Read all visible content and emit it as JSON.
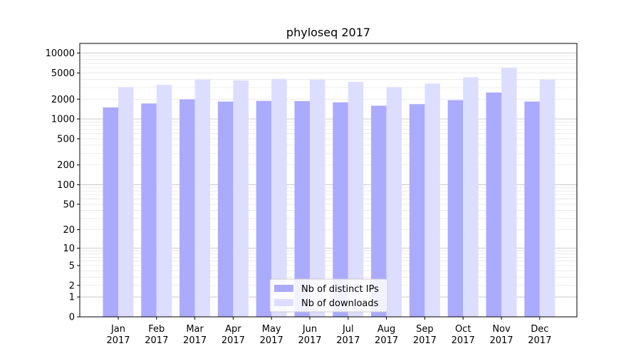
{
  "chart_data": {
    "type": "bar",
    "title": "phyloseq 2017",
    "xlabel": "",
    "ylabel": "",
    "yscale": "log",
    "ylim": [
      0,
      14000
    ],
    "yticks": [
      0,
      1,
      2,
      5,
      10,
      20,
      50,
      100,
      200,
      500,
      1000,
      2000,
      5000,
      10000
    ],
    "ytick_labels": [
      "0",
      "1",
      "2",
      "5",
      "10",
      "20",
      "50",
      "100",
      "200",
      "500",
      "1000",
      "2000",
      "5000",
      "10000"
    ],
    "grid": true,
    "legend": "lower-center",
    "categories": [
      "Jan",
      "Feb",
      "Mar",
      "Apr",
      "May",
      "Jun",
      "Jul",
      "Aug",
      "Sep",
      "Oct",
      "Nov",
      "Dec"
    ],
    "category_years": [
      "2017",
      "2017",
      "2017",
      "2017",
      "2017",
      "2017",
      "2017",
      "2017",
      "2017",
      "2017",
      "2017",
      "2017"
    ],
    "series": [
      {
        "name": "Nb of distinct IPs",
        "color": "#aaaaff",
        "values": [
          1500,
          1720,
          1980,
          1840,
          1880,
          1870,
          1790,
          1590,
          1680,
          1930,
          2520,
          1840
        ]
      },
      {
        "name": "Nb of downloads",
        "color": "#ddddff",
        "values": [
          3050,
          3300,
          3950,
          3850,
          4050,
          3950,
          3650,
          3050,
          3450,
          4300,
          6000,
          3950
        ]
      }
    ]
  }
}
